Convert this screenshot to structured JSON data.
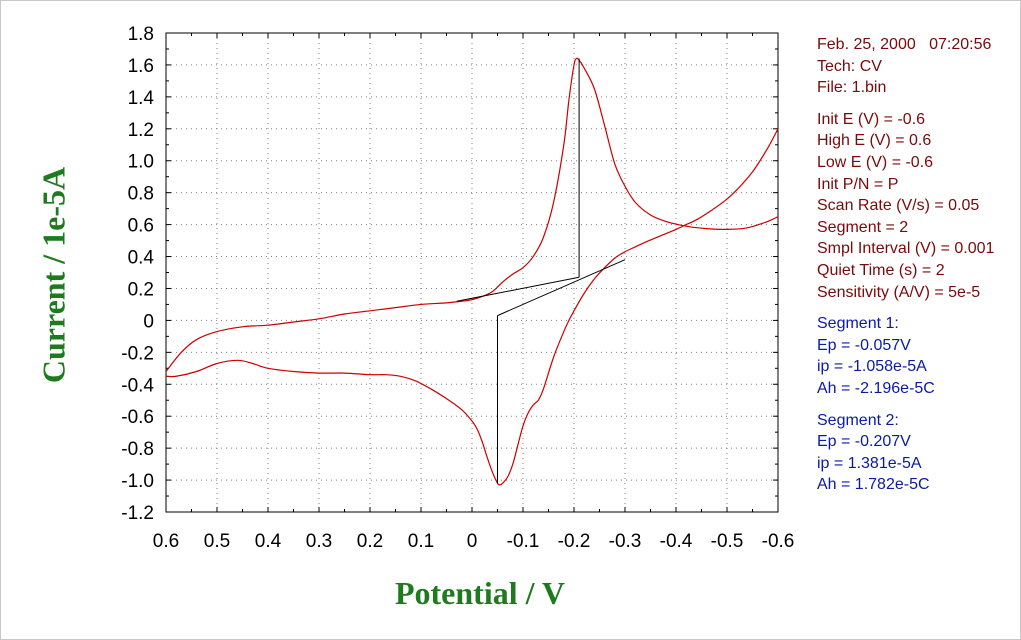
{
  "chart_data": {
    "type": "line",
    "title": "",
    "xlabel": "Potential / V",
    "ylabel": "Current / 1e-5A",
    "xlim": [
      0.6,
      -0.6
    ],
    "ylim": [
      -1.2,
      1.8
    ],
    "x_reversed": true,
    "grid": true,
    "grid_style": "dotted",
    "x_ticks": [
      0.6,
      0.5,
      0.4,
      0.3,
      0.2,
      0.1,
      0,
      -0.1,
      -0.2,
      -0.3,
      -0.4,
      -0.5,
      -0.6
    ],
    "x_tick_labels": [
      "0.6",
      "0.5",
      "0.4",
      "0.3",
      "0.2",
      "0.1",
      "0",
      "-0.1",
      "-0.2",
      "-0.3",
      "-0.4",
      "-0.5",
      "-0.6"
    ],
    "y_ticks": [
      1.8,
      1.6,
      1.4,
      1.2,
      1.0,
      0.8,
      0.6,
      0.4,
      0.2,
      0,
      -0.2,
      -0.4,
      -0.6,
      -0.8,
      -1.0,
      -1.2
    ],
    "y_tick_labels": [
      "1.8",
      "1.6",
      "1.4",
      "1.2",
      "1.0",
      "0.8",
      "0.6",
      "0.4",
      "0.2",
      "0",
      "-0.2",
      "-0.4",
      "-0.6",
      "-0.8",
      "-1.0",
      "-1.2"
    ],
    "curve_color": "#cc0000",
    "baseline_color": "#000000",
    "series": [
      {
        "x": [
          0.6,
          0.57,
          0.54,
          0.5,
          0.45,
          0.4,
          0.35,
          0.3,
          0.25,
          0.2,
          0.15,
          0.1,
          0.05,
          0.02,
          0.0,
          -0.02,
          -0.04,
          -0.06,
          -0.08,
          -0.1,
          -0.12,
          -0.14,
          -0.16,
          -0.18,
          -0.19,
          -0.2,
          -0.205,
          -0.21,
          -0.22,
          -0.24,
          -0.26,
          -0.28,
          -0.3,
          -0.32,
          -0.35,
          -0.38,
          -0.42,
          -0.46,
          -0.5,
          -0.54,
          -0.58,
          -0.6
        ],
        "y": [
          -0.32,
          -0.2,
          -0.12,
          -0.07,
          -0.04,
          -0.03,
          -0.01,
          0.01,
          0.04,
          0.06,
          0.08,
          0.1,
          0.11,
          0.12,
          0.13,
          0.15,
          0.18,
          0.24,
          0.29,
          0.33,
          0.4,
          0.52,
          0.74,
          1.1,
          1.38,
          1.6,
          1.64,
          1.63,
          1.58,
          1.45,
          1.22,
          0.98,
          0.84,
          0.74,
          0.66,
          0.62,
          0.59,
          0.575,
          0.57,
          0.58,
          0.62,
          0.65
        ]
      },
      {
        "x": [
          -0.6,
          -0.58,
          -0.55,
          -0.52,
          -0.5,
          -0.47,
          -0.44,
          -0.42,
          -0.4,
          -0.37,
          -0.34,
          -0.32,
          -0.3,
          -0.28,
          -0.26,
          -0.24,
          -0.22,
          -0.2,
          -0.19,
          -0.18,
          -0.16,
          -0.14,
          -0.13,
          -0.12,
          -0.11,
          -0.1,
          -0.09,
          -0.08,
          -0.07,
          -0.06,
          -0.055,
          -0.05,
          -0.04,
          -0.03,
          -0.02,
          -0.01,
          0.0,
          0.02,
          0.05,
          0.08,
          0.11,
          0.14,
          0.17,
          0.2,
          0.25,
          0.3,
          0.35,
          0.4,
          0.43,
          0.46,
          0.5,
          0.54,
          0.58,
          0.6
        ],
        "y": [
          1.2,
          1.08,
          0.93,
          0.82,
          0.76,
          0.69,
          0.63,
          0.6,
          0.57,
          0.53,
          0.49,
          0.46,
          0.43,
          0.39,
          0.33,
          0.26,
          0.17,
          0.06,
          0.0,
          -0.07,
          -0.23,
          -0.43,
          -0.5,
          -0.53,
          -0.58,
          -0.66,
          -0.78,
          -0.9,
          -0.98,
          -1.02,
          -1.03,
          -1.02,
          -0.95,
          -0.86,
          -0.76,
          -0.68,
          -0.63,
          -0.56,
          -0.49,
          -0.43,
          -0.38,
          -0.35,
          -0.34,
          -0.34,
          -0.33,
          -0.33,
          -0.32,
          -0.3,
          -0.27,
          -0.25,
          -0.27,
          -0.32,
          -0.35,
          -0.35
        ]
      }
    ],
    "baselines": [
      {
        "from": [
          0.03,
          0.12
        ],
        "to": [
          -0.21,
          0.27
        ]
      },
      {
        "from": [
          -0.21,
          0.27
        ],
        "to": [
          -0.21,
          1.64
        ]
      },
      {
        "from": [
          -0.05,
          0.03
        ],
        "to": [
          -0.3,
          0.38
        ]
      },
      {
        "from": [
          -0.05,
          0.03
        ],
        "to": [
          -0.05,
          -1.02
        ]
      }
    ]
  },
  "info": {
    "date": "Feb. 25, 2000   07:20:56",
    "tech": "Tech: CV",
    "file": "File: 1.bin",
    "params": [
      "Init E (V) = -0.6",
      "High E (V) = 0.6",
      "Low E (V) = -0.6",
      "Init P/N = P",
      "Scan Rate (V/s) = 0.05",
      "Segment = 2",
      "Smpl Interval (V) = 0.001",
      "Quiet Time (s) = 2",
      "Sensitivity (A/V) = 5e-5"
    ],
    "segment1": {
      "title": "Segment 1:",
      "ep": "Ep = -0.057V",
      "ip": "ip = -1.058e-5A",
      "ah": "Ah = -2.196e-5C"
    },
    "segment2": {
      "title": "Segment 2:",
      "ep": "Ep = -0.207V",
      "ip": "ip = 1.381e-5A",
      "ah": "Ah = 1.782e-5C"
    }
  }
}
